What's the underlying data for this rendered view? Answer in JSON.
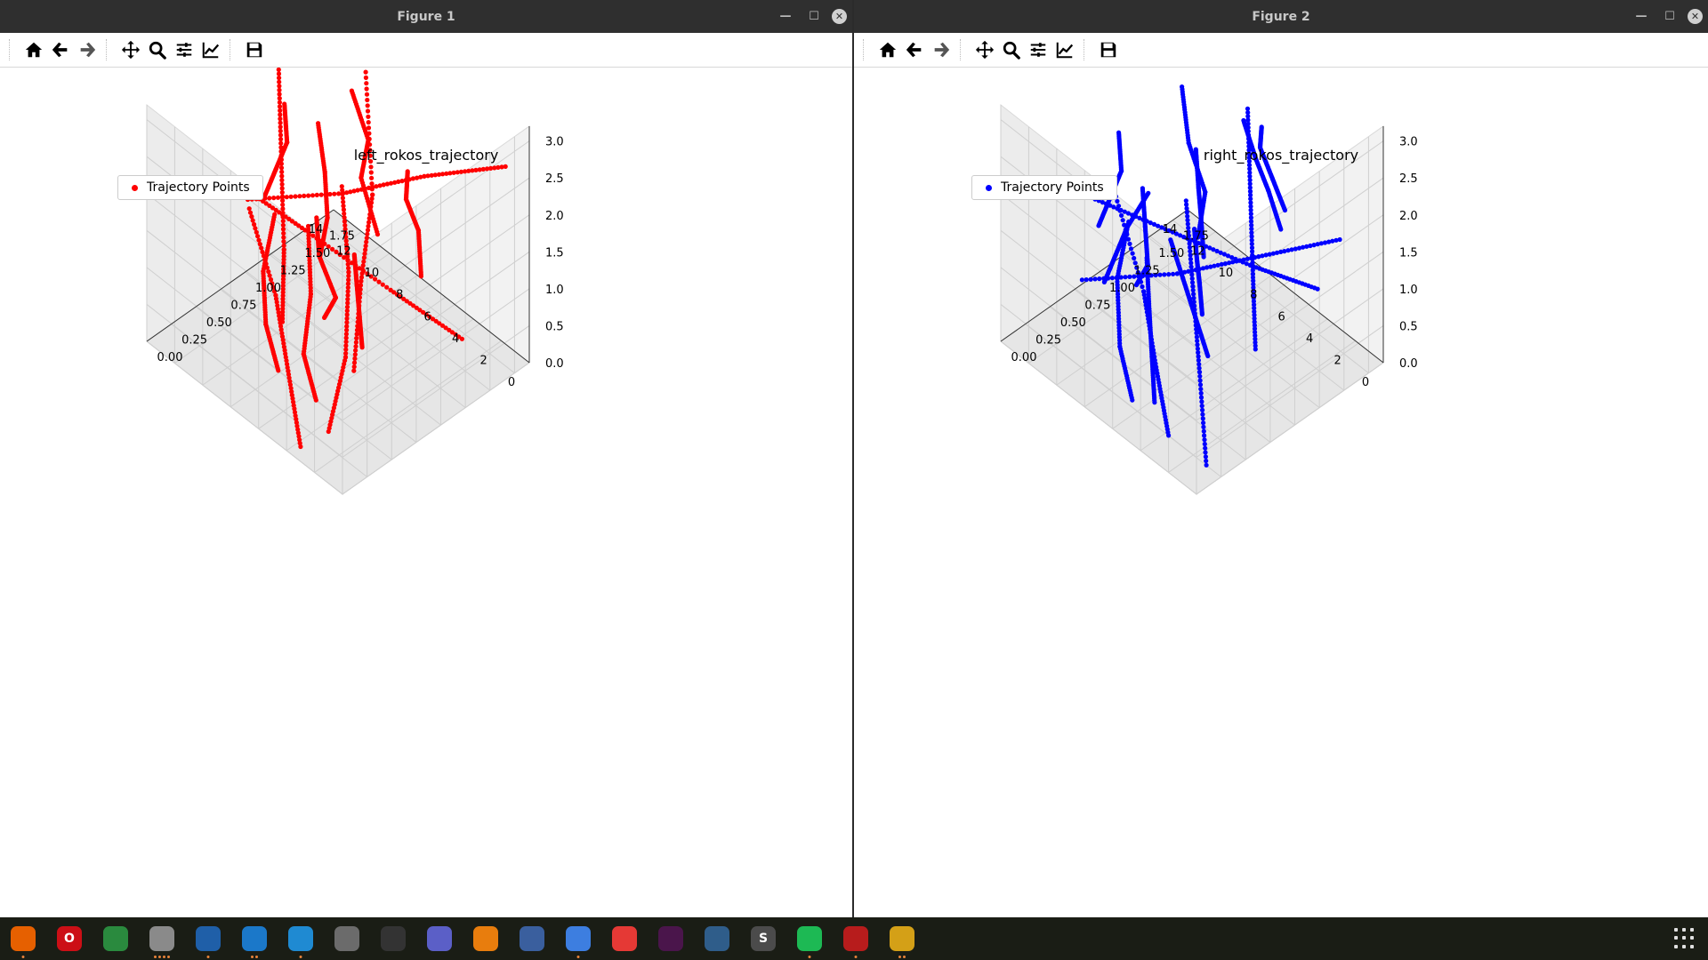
{
  "figures": [
    {
      "window_title": "Figure 1",
      "plot_title": "left_rokos_trajectory",
      "legend_label": "Trajectory Points",
      "color": "#ff0000"
    },
    {
      "window_title": "Figure 2",
      "plot_title": "right_rokos_trajectory",
      "legend_label": "Trajectory Points",
      "color": "#0000ff"
    }
  ],
  "window_controls": [
    "minimize-icon",
    "maximize-icon",
    "close-icon"
  ],
  "toolbar_icons": [
    "home-icon",
    "back-arrow-icon",
    "forward-arrow-icon",
    "pan-move-icon",
    "zoom-icon",
    "configure-subplots-icon",
    "edit-axis-icon",
    "save-icon"
  ],
  "chart_data": [
    {
      "type": "scatter",
      "projection": "3d",
      "title": "left_rokos_trajectory",
      "legend": [
        "Trajectory Points"
      ],
      "legend_placement": "upper-left",
      "x_ticks": [
        "0",
        "2",
        "4",
        "6",
        "8",
        "10",
        "12",
        "14"
      ],
      "y_ticks": [
        "0.00",
        "0.25",
        "0.50",
        "0.75",
        "1.00",
        "1.25",
        "1.50",
        "1.75"
      ],
      "z_ticks": [
        "0.0",
        "0.5",
        "1.0",
        "1.5",
        "2.0",
        "2.5",
        "3.0"
      ],
      "xlim": [
        0,
        14
      ],
      "ylim": [
        0,
        1.9
      ],
      "zlim": [
        0,
        3.2
      ],
      "grid": true,
      "series": [
        {
          "color": "#ff0000",
          "marker": "dot",
          "polylines": [
            [
              [
                1,
                0.0,
                0.7
              ],
              [
                4,
                0.6,
                0.7
              ],
              [
                8,
                1.2,
                0.7
              ],
              [
                12,
                1.7,
                0.8
              ]
            ],
            [
              [
                2,
                0.4,
                1.0
              ],
              [
                5,
                0.9,
                1.3
              ],
              [
                7,
                1.3,
                1.8
              ],
              [
                11,
                1.8,
                2.4
              ]
            ],
            [
              [
                3,
                0.2,
                2.6
              ],
              [
                6,
                0.7,
                2.2
              ],
              [
                9,
                1.1,
                2.0
              ],
              [
                13,
                1.6,
                1.6
              ]
            ],
            [
              [
                2,
                0.1,
                2.0
              ],
              [
                4,
                0.5,
                1.6
              ],
              [
                8,
                0.9,
                1.2
              ],
              [
                11,
                1.3,
                0.9
              ]
            ],
            [
              [
                4,
                0.3,
                0.4
              ],
              [
                7,
                0.6,
                0.3
              ],
              [
                10,
                1.1,
                0.2
              ],
              [
                13,
                1.5,
                0.3
              ]
            ],
            [
              [
                1,
                0.5,
                2.9
              ],
              [
                5,
                0.9,
                2.7
              ],
              [
                8,
                1.4,
                2.3
              ],
              [
                12,
                1.8,
                2.0
              ]
            ],
            [
              [
                0,
                0.2,
                1.8
              ],
              [
                3,
                0.6,
                1.4
              ],
              [
                6,
                1.0,
                1.0
              ],
              [
                9,
                1.4,
                0.6
              ]
            ],
            [
              [
                5,
                0.1,
                1.5
              ],
              [
                7,
                0.4,
                1.9
              ],
              [
                10,
                0.8,
                2.3
              ],
              [
                13,
                1.2,
                2.7
              ]
            ],
            [
              [
                6,
                0.2,
                0.6
              ],
              [
                9,
                0.5,
                0.5
              ],
              [
                12,
                0.9,
                0.4
              ],
              [
                14,
                1.3,
                0.5
              ]
            ],
            [
              [
                0,
                0.8,
                2.2
              ],
              [
                3,
                1.2,
                2.0
              ],
              [
                6,
                1.5,
                1.7
              ],
              [
                8,
                1.8,
                1.5
              ]
            ],
            [
              [
                2,
                1.5,
                0.4
              ],
              [
                5,
                1.2,
                0.9
              ],
              [
                9,
                0.9,
                1.4
              ],
              [
                12,
                0.6,
                1.9
              ]
            ],
            [
              [
                1,
                1.8,
                2.6
              ],
              [
                4,
                1.4,
                2.4
              ],
              [
                7,
                1.0,
                2.1
              ],
              [
                11,
                0.6,
                1.8
              ]
            ],
            [
              [
                3,
                0.0,
                0.2
              ],
              [
                6,
                0.3,
                0.5
              ],
              [
                9,
                0.6,
                0.8
              ],
              [
                13,
                0.9,
                1.1
              ]
            ],
            [
              [
                7,
                0.2,
                2.8
              ],
              [
                9,
                0.6,
                2.5
              ],
              [
                11,
                1.0,
                2.2
              ],
              [
                14,
                1.4,
                1.9
              ]
            ]
          ]
        }
      ]
    },
    {
      "type": "scatter",
      "projection": "3d",
      "title": "right_rokos_trajectory",
      "legend": [
        "Trajectory Points"
      ],
      "legend_placement": "upper-left",
      "x_ticks": [
        "0",
        "2",
        "4",
        "6",
        "8",
        "10",
        "12",
        "14"
      ],
      "y_ticks": [
        "0.00",
        "0.25",
        "0.50",
        "0.75",
        "1.00",
        "1.25",
        "1.50",
        "1.75"
      ],
      "z_ticks": [
        "0.0",
        "0.5",
        "1.0",
        "1.5",
        "2.0",
        "2.5",
        "3.0"
      ],
      "xlim": [
        0,
        14
      ],
      "ylim": [
        0,
        1.9
      ],
      "zlim": [
        0,
        3.2
      ],
      "grid": true,
      "series": [
        {
          "color": "#0000ff",
          "marker": "dot",
          "polylines": [
            [
              [
                0,
                0.1,
                0.3
              ],
              [
                4,
                0.6,
                0.5
              ],
              [
                8,
                1.1,
                0.6
              ],
              [
                12,
                1.6,
                0.7
              ]
            ],
            [
              [
                1,
                0.2,
                2.1
              ],
              [
                4,
                0.6,
                1.7
              ],
              [
                7,
                1.0,
                1.2
              ],
              [
                10,
                1.4,
                0.8
              ]
            ],
            [
              [
                2,
                0.3,
                2.9
              ],
              [
                5,
                0.8,
                2.6
              ],
              [
                9,
                1.2,
                2.3
              ],
              [
                13,
                1.7,
                2.0
              ]
            ],
            [
              [
                0,
                0.6,
                1.4
              ],
              [
                3,
                1.0,
                1.6
              ],
              [
                6,
                1.4,
                1.9
              ],
              [
                9,
                1.8,
                2.2
              ]
            ],
            [
              [
                3,
                0.0,
                0.8
              ],
              [
                6,
                0.4,
                0.6
              ],
              [
                9,
                0.8,
                0.4
              ],
              [
                12,
                1.2,
                0.3
              ]
            ],
            [
              [
                1,
                1.0,
                2.5
              ],
              [
                4,
                1.3,
                2.3
              ],
              [
                7,
                1.6,
                2.0
              ],
              [
                10,
                1.9,
                1.8
              ]
            ],
            [
              [
                5,
                0.1,
                2.0
              ],
              [
                7,
                0.5,
                1.6
              ],
              [
                10,
                0.9,
                1.3
              ],
              [
                13,
                1.3,
                1.0
              ]
            ],
            [
              [
                2,
                0.4,
                1.2
              ],
              [
                5,
                0.7,
                1.0
              ],
              [
                8,
                1.0,
                0.8
              ],
              [
                11,
                1.3,
                0.6
              ]
            ],
            [
              [
                6,
                0.2,
                0.2
              ],
              [
                9,
                0.5,
                0.2
              ],
              [
                12,
                0.9,
                0.3
              ],
              [
                14,
                1.3,
                0.4
              ]
            ],
            [
              [
                0,
                0.9,
                3.0
              ],
              [
                3,
                1.2,
                2.7
              ],
              [
                6,
                1.5,
                2.4
              ],
              [
                8,
                1.8,
                2.1
              ]
            ],
            [
              [
                4,
                1.8,
                0.5
              ],
              [
                6,
                1.4,
                0.9
              ],
              [
                9,
                1.0,
                1.3
              ],
              [
                12,
                0.6,
                1.7
              ]
            ],
            [
              [
                1,
                1.6,
                1.8
              ],
              [
                4,
                1.2,
                1.5
              ],
              [
                7,
                0.8,
                1.2
              ],
              [
                11,
                0.4,
                0.9
              ]
            ],
            [
              [
                7,
                0.0,
                2.6
              ],
              [
                9,
                0.4,
                2.3
              ],
              [
                11,
                0.8,
                2.0
              ],
              [
                14,
                1.2,
                1.7
              ]
            ],
            [
              [
                3,
                0.5,
                2.3
              ],
              [
                6,
                0.9,
                2.0
              ],
              [
                9,
                1.3,
                1.6
              ],
              [
                12,
                1.7,
                1.3
              ]
            ],
            [
              [
                2,
                0.0,
                0.5
              ],
              [
                5,
                0.3,
                0.7
              ],
              [
                8,
                0.6,
                1.0
              ],
              [
                13,
                1.0,
                1.3
              ]
            ],
            [
              [
                8,
                0.2,
                1.5
              ],
              [
                10,
                0.6,
                1.2
              ],
              [
                12,
                1.0,
                0.9
              ],
              [
                14,
                1.5,
                0.6
              ]
            ]
          ]
        }
      ]
    }
  ],
  "taskbar": {
    "apps": [
      {
        "name": "firefox",
        "color": "#e66000",
        "glyph": "",
        "dots": 1
      },
      {
        "name": "opera",
        "color": "#cc0f16",
        "glyph": "O",
        "dots": 0
      },
      {
        "name": "chrome",
        "color": "#2a8a3e",
        "glyph": "",
        "dots": 0
      },
      {
        "name": "files",
        "color": "#8a8a8a",
        "glyph": "",
        "dots": 4
      },
      {
        "name": "thunderbird",
        "color": "#1f5fa8",
        "glyph": "",
        "dots": 1
      },
      {
        "name": "writer",
        "color": "#1b78c9",
        "glyph": "",
        "dots": 2
      },
      {
        "name": "vscode",
        "color": "#1f8ad2",
        "glyph": "",
        "dots": 1
      },
      {
        "name": "camera",
        "color": "#6b6b6b",
        "glyph": "",
        "dots": 0
      },
      {
        "name": "system-monitor",
        "color": "#333333",
        "glyph": "",
        "dots": 0
      },
      {
        "name": "teams",
        "color": "#5b5fc7",
        "glyph": "",
        "dots": 0
      },
      {
        "name": "blender",
        "color": "#e87d0d",
        "glyph": "",
        "dots": 0
      },
      {
        "name": "tools",
        "color": "#3a5f9e",
        "glyph": "",
        "dots": 0
      },
      {
        "name": "text-editor",
        "color": "#3d7ee0",
        "glyph": "",
        "dots": 1
      },
      {
        "name": "anydesk",
        "color": "#e53935",
        "glyph": "",
        "dots": 0
      },
      {
        "name": "slack",
        "color": "#4a154b",
        "glyph": "",
        "dots": 0
      },
      {
        "name": "virtualbox",
        "color": "#2f5d8a",
        "glyph": "",
        "dots": 0
      },
      {
        "name": "sublime",
        "color": "#4b4b4b",
        "glyph": "S",
        "dots": 0
      },
      {
        "name": "spotify",
        "color": "#1db954",
        "glyph": "",
        "dots": 1
      },
      {
        "name": "screenshot",
        "color": "#b71c1c",
        "glyph": "",
        "dots": 1
      },
      {
        "name": "gimp",
        "color": "#d4a017",
        "glyph": "",
        "dots": 2
      }
    ],
    "show_apps_icon": "app-grid-icon"
  }
}
